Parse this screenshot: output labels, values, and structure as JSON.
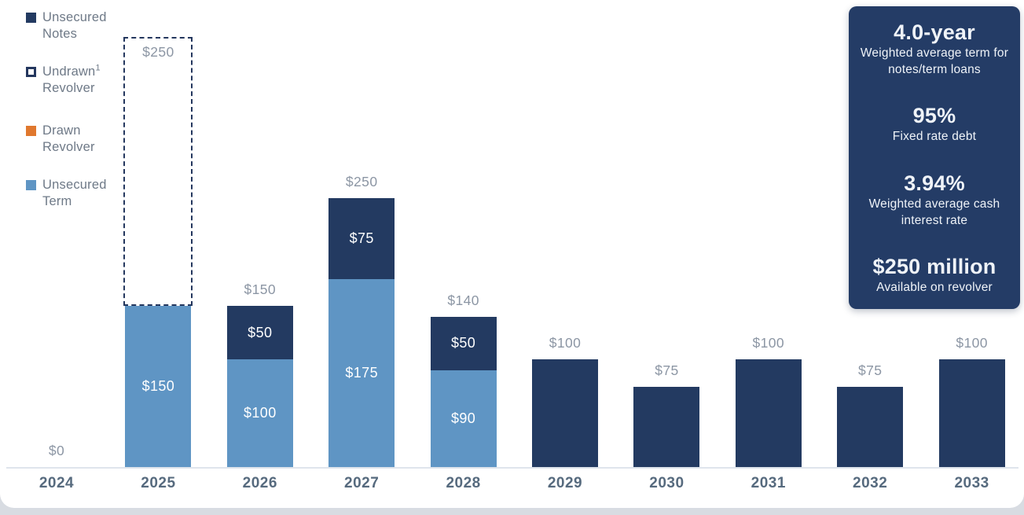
{
  "colors": {
    "unsecured_notes": "#233A61",
    "unsecured_term": "#5F95C4",
    "drawn_revolver": "#E0782E",
    "undrawn_revolver_border": "#24375E",
    "segment_label_text": "#FFFFFF",
    "value_label_text": "#8C96A4",
    "year_label_text": "#566A7E",
    "legend_text": "#6E7987",
    "axis_line": "#DFE5EC",
    "panel_bg": "#243C66",
    "panel_text": "#EFF3F8",
    "page_strip": "#D8DCE2",
    "card_bg": "#FFFFFF"
  },
  "legend": {
    "items": [
      {
        "line1": "Unsecured",
        "line2": "Notes",
        "series": "unsecured_notes",
        "swatch": "filled"
      },
      {
        "line1": "Undrawn",
        "sup": "1",
        "line2": "Revolver",
        "series": "undrawn_revolver",
        "swatch": "outline"
      },
      {
        "line1": "Drawn",
        "line2": "Revolver",
        "series": "drawn_revolver",
        "swatch": "filled"
      },
      {
        "line1": "Unsecured",
        "line2": "Term",
        "series": "unsecured_term",
        "swatch": "filled"
      }
    ]
  },
  "stats": {
    "items": [
      {
        "value": "4.0-year",
        "caption": "Weighted average term for notes/term loans"
      },
      {
        "value": "95%",
        "caption": "Fixed rate debt"
      },
      {
        "value": "3.94%",
        "caption": "Weighted average cash interest rate"
      },
      {
        "value": "$250 million",
        "caption": "Available on revolver"
      }
    ]
  },
  "chart_data": {
    "type": "bar",
    "stacked": true,
    "title": "",
    "xlabel": "",
    "ylabel": "",
    "categories": [
      "2024",
      "2025",
      "2026",
      "2027",
      "2028",
      "2029",
      "2030",
      "2031",
      "2032",
      "2033"
    ],
    "series": [
      {
        "name": "Unsecured Term",
        "values": [
          0,
          150,
          100,
          175,
          90,
          0,
          0,
          0,
          0,
          0
        ]
      },
      {
        "name": "Unsecured Notes",
        "values": [
          0,
          0,
          50,
          75,
          50,
          100,
          75,
          100,
          75,
          100
        ]
      },
      {
        "name": "Undrawn Revolver",
        "values": [
          0,
          250,
          0,
          0,
          0,
          0,
          0,
          0,
          0,
          0
        ]
      },
      {
        "name": "Drawn Revolver",
        "values": [
          0,
          0,
          0,
          0,
          0,
          0,
          0,
          0,
          0,
          0
        ]
      }
    ],
    "legend_position": "left",
    "y_axis_visible": false,
    "gridlines": false,
    "bars": [
      {
        "year": "2024",
        "top_label": "$0",
        "segments": []
      },
      {
        "year": "2025",
        "top_label": "$250",
        "top_label_inside_dashed": true,
        "undrawn": {
          "value": 250
        },
        "segments": [
          {
            "series": "unsecured_term",
            "value": 150,
            "label": "$150"
          }
        ]
      },
      {
        "year": "2026",
        "top_label": "$150",
        "segments": [
          {
            "series": "unsecured_term",
            "value": 100,
            "label": "$100"
          },
          {
            "series": "unsecured_notes",
            "value": 50,
            "label": "$50"
          }
        ]
      },
      {
        "year": "2027",
        "top_label": "$250",
        "segments": [
          {
            "series": "unsecured_term",
            "value": 175,
            "label": "$175"
          },
          {
            "series": "unsecured_notes",
            "value": 75,
            "label": "$75"
          }
        ]
      },
      {
        "year": "2028",
        "top_label": "$140",
        "segments": [
          {
            "series": "unsecured_term",
            "value": 90,
            "label": "$90"
          },
          {
            "series": "unsecured_notes",
            "value": 50,
            "label": "$50"
          }
        ]
      },
      {
        "year": "2029",
        "top_label": "$100",
        "segments": [
          {
            "series": "unsecured_notes",
            "value": 100
          }
        ]
      },
      {
        "year": "2030",
        "top_label": "$75",
        "segments": [
          {
            "series": "unsecured_notes",
            "value": 75
          }
        ]
      },
      {
        "year": "2031",
        "top_label": "$100",
        "segments": [
          {
            "series": "unsecured_notes",
            "value": 100
          }
        ]
      },
      {
        "year": "2032",
        "top_label": "$75",
        "segments": [
          {
            "series": "unsecured_notes",
            "value": 75
          }
        ]
      },
      {
        "year": "2033",
        "top_label": "$100",
        "segments": [
          {
            "series": "unsecured_notes",
            "value": 100
          }
        ]
      }
    ]
  }
}
